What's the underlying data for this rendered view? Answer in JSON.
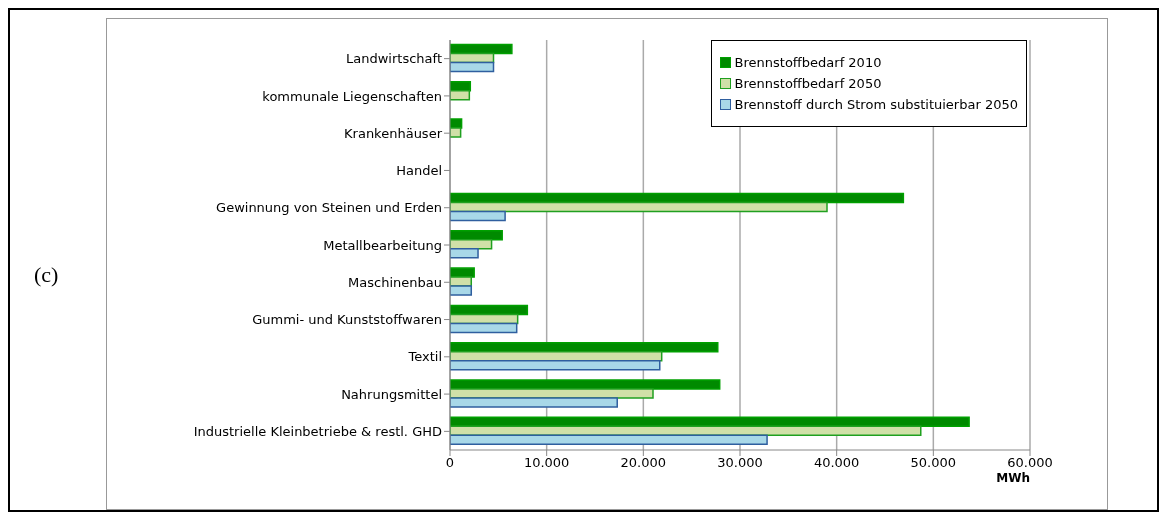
{
  "chart_data": {
    "type": "bar",
    "orientation": "horizontal",
    "xlabel": "MWh",
    "categories": [
      "Landwirtschaft",
      "kommunale Liegenschaften",
      "Krankenhäuser",
      "Handel",
      "Gewinnung von Steinen und Erden",
      "Metallbearbeitung",
      "Maschinenbau",
      "Gummi- und Kunststoffwaren",
      "Textil",
      "Nahrungsmittel",
      "Industrielle Kleinbetriebe & restl. GHD"
    ],
    "series": [
      {
        "name": "Brennstoffbedarf 2010",
        "color": "#008a00",
        "values": [
          6400,
          2100,
          1200,
          0,
          46900,
          5400,
          2500,
          8000,
          27700,
          27900,
          53700
        ]
      },
      {
        "name": "Brennstoffbedarf 2050",
        "color": "#d0e0a8",
        "values": [
          4500,
          2000,
          1100,
          0,
          39000,
          4300,
          2200,
          7000,
          21900,
          21000,
          48700
        ]
      },
      {
        "name": "Brennstoff durch Strom substituierbar 2050",
        "color": "#a8d8e8",
        "values": [
          4500,
          0,
          0,
          0,
          5700,
          2900,
          2200,
          6900,
          21700,
          17300,
          32800
        ]
      }
    ],
    "xlim": [
      0,
      60000
    ],
    "xticks": [
      0,
      {
        "value": 10000,
        "label": "10.000"
      },
      {
        "value": 20000,
        "label": "20.000"
      },
      {
        "value": 30000,
        "label": "30.000"
      },
      {
        "value": 40000,
        "label": "40.000"
      },
      {
        "value": 50000,
        "label": "50.000"
      },
      {
        "value": 60000,
        "label": "60.000"
      }
    ],
    "grid": "x",
    "legend": "top right",
    "annotations": [
      "(c)"
    ]
  }
}
